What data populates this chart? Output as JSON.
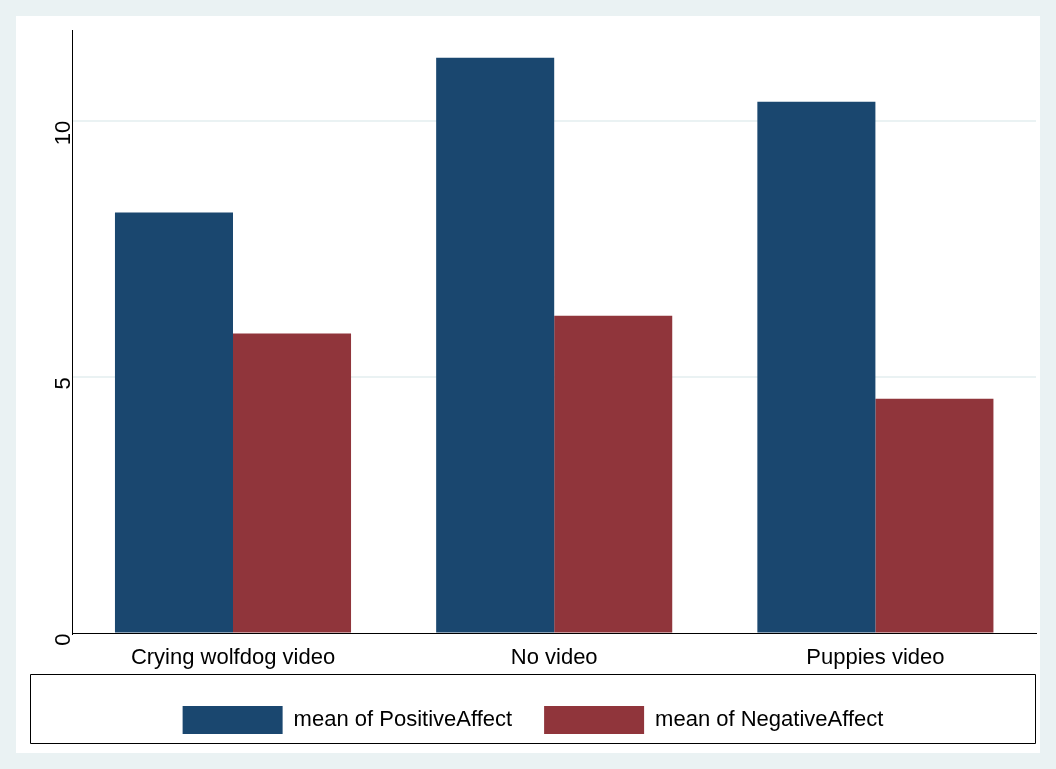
{
  "chart_data": {
    "type": "bar",
    "categories": [
      "Crying wolfdog video",
      "No video",
      "Puppies video"
    ],
    "series": [
      {
        "name": "mean of PositiveAffect",
        "color": "#1a476f",
        "values": [
          8.21,
          11.23,
          10.37
        ]
      },
      {
        "name": "mean of NegativeAffect",
        "color": "#90353b",
        "values": [
          5.85,
          6.2,
          4.58
        ]
      }
    ],
    "ylim": [
      0,
      11.77
    ],
    "yticks": [
      0,
      5,
      10
    ],
    "grid": "y",
    "legend": "bottom"
  }
}
